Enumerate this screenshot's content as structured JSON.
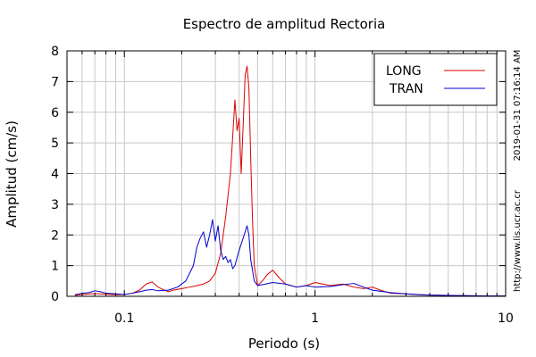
{
  "chart_data": {
    "type": "line",
    "title": "Espectro de amplitud Rectoria",
    "xlabel": "Periodo (s)",
    "ylabel": "Amplitud (cm/s)",
    "xscale": "log",
    "xlim": [
      0.05,
      10
    ],
    "ylim": [
      0,
      8
    ],
    "x_ticks": [
      0.1,
      1,
      10
    ],
    "x_tick_labels": [
      "0.1",
      "1",
      "10"
    ],
    "y_ticks": [
      0,
      1,
      2,
      3,
      4,
      5,
      6,
      7,
      8
    ],
    "y_tick_labels": [
      "0",
      "1",
      "2",
      "3",
      "4",
      "5",
      "6",
      "7",
      "8"
    ],
    "grid": true,
    "legend_position": "top-right",
    "timestamp": "2019-01-31 07:16:14 AM",
    "source_url": "http://www.lis.ucr.ac.cr",
    "series": [
      {
        "name": "LONG",
        "color": "#dd0000",
        "x": [
          0.055,
          0.06,
          0.07,
          0.08,
          0.09,
          0.1,
          0.11,
          0.12,
          0.13,
          0.14,
          0.15,
          0.16,
          0.17,
          0.18,
          0.2,
          0.22,
          0.24,
          0.26,
          0.28,
          0.3,
          0.32,
          0.34,
          0.36,
          0.37,
          0.38,
          0.39,
          0.4,
          0.41,
          0.42,
          0.43,
          0.44,
          0.45,
          0.46,
          0.47,
          0.48,
          0.5,
          0.53,
          0.56,
          0.6,
          0.65,
          0.7,
          0.8,
          0.9,
          1.0,
          1.1,
          1.2,
          1.4,
          1.6,
          1.8,
          2.0,
          2.2,
          2.5,
          3.0,
          3.5,
          4.0,
          5.0,
          6.0,
          8.0,
          10.0
        ],
        "values": [
          0.03,
          0.06,
          0.09,
          0.07,
          0.05,
          0.06,
          0.1,
          0.2,
          0.4,
          0.47,
          0.3,
          0.22,
          0.15,
          0.2,
          0.25,
          0.3,
          0.35,
          0.4,
          0.5,
          0.75,
          1.4,
          2.6,
          4.0,
          5.2,
          6.4,
          5.4,
          5.8,
          4.0,
          5.6,
          7.2,
          7.5,
          6.8,
          4.5,
          2.5,
          1.0,
          0.35,
          0.5,
          0.7,
          0.85,
          0.6,
          0.4,
          0.3,
          0.35,
          0.45,
          0.4,
          0.35,
          0.4,
          0.3,
          0.25,
          0.3,
          0.2,
          0.1,
          0.08,
          0.05,
          0.04,
          0.03,
          0.02,
          0.01,
          0.01
        ]
      },
      {
        "name": "TRAN",
        "color": "#0000cc",
        "x": [
          0.055,
          0.06,
          0.065,
          0.07,
          0.075,
          0.08,
          0.09,
          0.1,
          0.11,
          0.12,
          0.13,
          0.14,
          0.15,
          0.17,
          0.19,
          0.21,
          0.23,
          0.24,
          0.25,
          0.26,
          0.27,
          0.28,
          0.29,
          0.3,
          0.31,
          0.32,
          0.33,
          0.34,
          0.35,
          0.36,
          0.37,
          0.38,
          0.4,
          0.42,
          0.44,
          0.45,
          0.46,
          0.48,
          0.5,
          0.55,
          0.6,
          0.7,
          0.8,
          0.9,
          1.0,
          1.2,
          1.4,
          1.6,
          1.8,
          2.0,
          2.5,
          3.0,
          3.5,
          4.0,
          5.0,
          6.0,
          8.0,
          10.0
        ],
        "values": [
          0.05,
          0.1,
          0.12,
          0.18,
          0.15,
          0.1,
          0.08,
          0.06,
          0.1,
          0.15,
          0.2,
          0.22,
          0.18,
          0.2,
          0.3,
          0.5,
          1.0,
          1.6,
          1.9,
          2.1,
          1.6,
          2.0,
          2.5,
          1.8,
          2.3,
          1.5,
          1.2,
          1.3,
          1.1,
          1.2,
          0.9,
          1.0,
          1.5,
          1.9,
          2.3,
          2.0,
          1.2,
          0.5,
          0.35,
          0.4,
          0.45,
          0.4,
          0.3,
          0.35,
          0.3,
          0.32,
          0.38,
          0.42,
          0.3,
          0.2,
          0.12,
          0.08,
          0.06,
          0.04,
          0.03,
          0.02,
          0.01,
          0.01
        ]
      }
    ]
  }
}
